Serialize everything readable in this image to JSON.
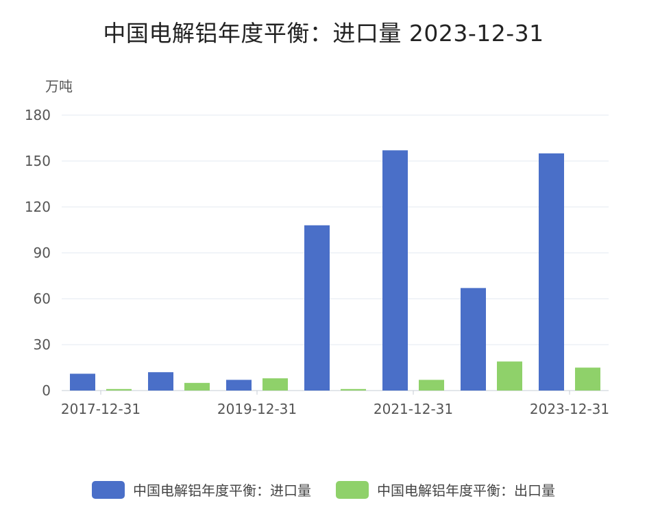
{
  "chart_data": {
    "type": "bar",
    "title": "中国电解铝年度平衡：进口量 2023-12-31",
    "ylabel": "万吨",
    "xlabel": "",
    "ylim": [
      0,
      180
    ],
    "yticks": [
      0,
      30,
      60,
      90,
      120,
      150,
      180
    ],
    "grid": true,
    "legend_position": "bottom",
    "categories": [
      "2017-12-31",
      "2018-12-31",
      "2019-12-31",
      "2020-12-31",
      "2021-12-31",
      "2022-12-31",
      "2023-12-31"
    ],
    "x_tick_labels": [
      "2017-12-31",
      "2019-12-31",
      "2021-12-31",
      "2023-12-31"
    ],
    "series": [
      {
        "name": "中国电解铝年度平衡：进口量",
        "color": "#4a6fc8",
        "values": [
          11,
          12,
          7,
          108,
          157,
          67,
          155
        ]
      },
      {
        "name": "中国电解铝年度平衡：出口量",
        "color": "#8fd16a",
        "values": [
          1,
          5,
          8,
          1,
          7,
          19,
          15
        ]
      }
    ]
  }
}
